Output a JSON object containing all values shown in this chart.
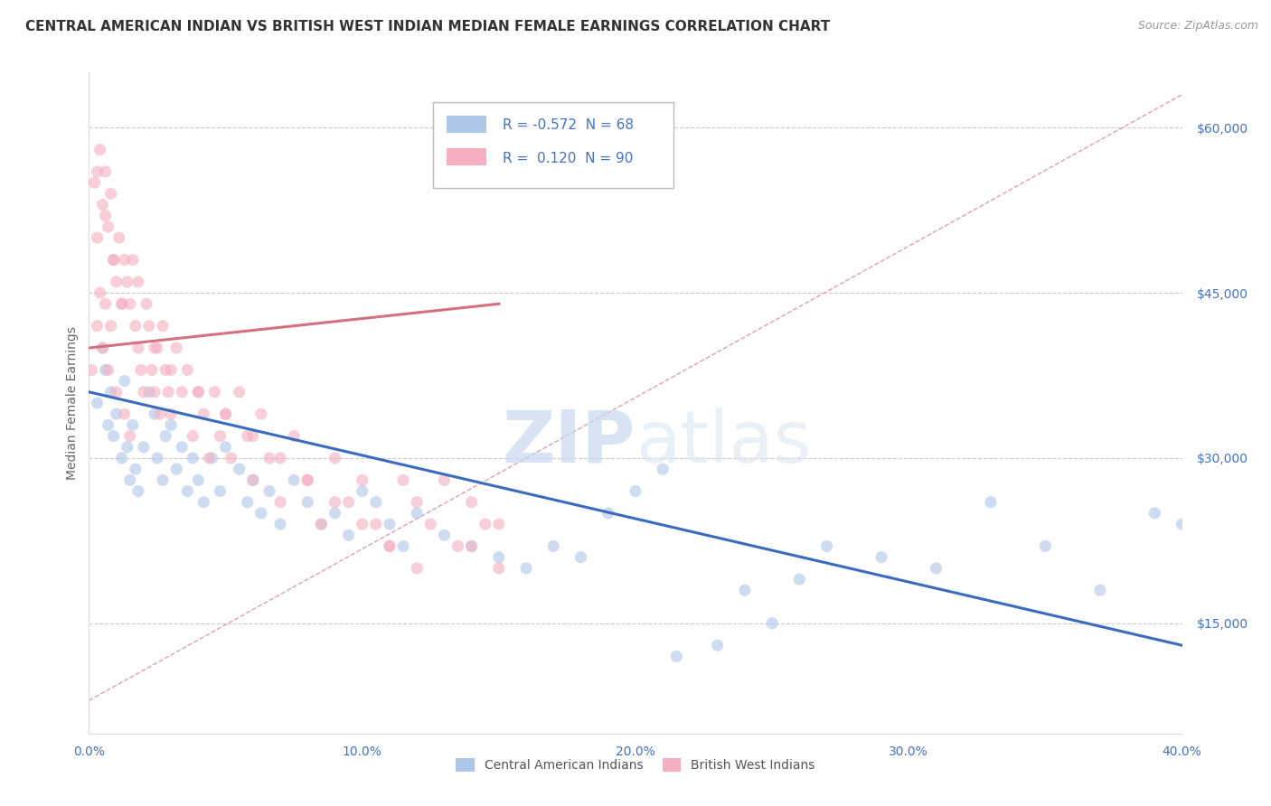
{
  "title": "CENTRAL AMERICAN INDIAN VS BRITISH WEST INDIAN MEDIAN FEMALE EARNINGS CORRELATION CHART",
  "source": "Source: ZipAtlas.com",
  "ylabel": "Median Female Earnings",
  "watermark_zip": "ZIP",
  "watermark_atlas": "atlas",
  "legend_blue_R": "-0.572",
  "legend_blue_N": "68",
  "legend_pink_R": "0.120",
  "legend_pink_N": "90",
  "legend_label_blue": "Central American Indians",
  "legend_label_pink": "British West Indians",
  "xlim": [
    0.0,
    0.4
  ],
  "ylim": [
    5000,
    65000
  ],
  "yticks": [
    15000,
    30000,
    45000,
    60000
  ],
  "ytick_labels": [
    "$15,000",
    "$30,000",
    "$45,000",
    "$60,000"
  ],
  "xticks": [
    0.0,
    0.1,
    0.2,
    0.3,
    0.4
  ],
  "xtick_labels": [
    "0.0%",
    "10.0%",
    "20.0%",
    "30.0%",
    "40.0%"
  ],
  "grid_color": "#cccccc",
  "bg_color": "#ffffff",
  "blue_color": "#aec6e8",
  "pink_color": "#f4afc0",
  "blue_line_color": "#3a6bbf",
  "pink_line_color": "#d47080",
  "dashed_line_color": "#e0a0b0",
  "title_color": "#333333",
  "axis_tick_color": "#4472c4",
  "ylabel_color": "#666666",
  "blue_scatter_x": [
    0.003,
    0.005,
    0.006,
    0.007,
    0.008,
    0.009,
    0.01,
    0.012,
    0.013,
    0.014,
    0.015,
    0.016,
    0.017,
    0.018,
    0.02,
    0.022,
    0.024,
    0.025,
    0.027,
    0.028,
    0.03,
    0.032,
    0.034,
    0.036,
    0.038,
    0.04,
    0.042,
    0.045,
    0.048,
    0.05,
    0.055,
    0.058,
    0.06,
    0.063,
    0.066,
    0.07,
    0.075,
    0.08,
    0.085,
    0.09,
    0.095,
    0.1,
    0.105,
    0.11,
    0.115,
    0.12,
    0.13,
    0.14,
    0.15,
    0.16,
    0.17,
    0.18,
    0.19,
    0.2,
    0.215,
    0.23,
    0.25,
    0.27,
    0.29,
    0.31,
    0.33,
    0.35,
    0.37,
    0.39,
    0.21,
    0.24,
    0.26,
    0.4
  ],
  "blue_scatter_y": [
    35000,
    40000,
    38000,
    33000,
    36000,
    32000,
    34000,
    30000,
    37000,
    31000,
    28000,
    33000,
    29000,
    27000,
    31000,
    36000,
    34000,
    30000,
    28000,
    32000,
    33000,
    29000,
    31000,
    27000,
    30000,
    28000,
    26000,
    30000,
    27000,
    31000,
    29000,
    26000,
    28000,
    25000,
    27000,
    24000,
    28000,
    26000,
    24000,
    25000,
    23000,
    27000,
    26000,
    24000,
    22000,
    25000,
    23000,
    22000,
    21000,
    20000,
    22000,
    21000,
    25000,
    27000,
    12000,
    13000,
    15000,
    22000,
    21000,
    20000,
    26000,
    22000,
    18000,
    25000,
    29000,
    18000,
    19000,
    24000
  ],
  "pink_scatter_x": [
    0.001,
    0.002,
    0.003,
    0.003,
    0.004,
    0.004,
    0.005,
    0.005,
    0.006,
    0.006,
    0.007,
    0.007,
    0.008,
    0.008,
    0.009,
    0.01,
    0.01,
    0.011,
    0.012,
    0.013,
    0.013,
    0.014,
    0.015,
    0.015,
    0.016,
    0.017,
    0.018,
    0.019,
    0.02,
    0.021,
    0.022,
    0.023,
    0.024,
    0.025,
    0.026,
    0.027,
    0.028,
    0.029,
    0.03,
    0.032,
    0.034,
    0.036,
    0.038,
    0.04,
    0.042,
    0.044,
    0.046,
    0.048,
    0.05,
    0.052,
    0.055,
    0.058,
    0.06,
    0.063,
    0.066,
    0.07,
    0.075,
    0.08,
    0.085,
    0.09,
    0.095,
    0.1,
    0.105,
    0.11,
    0.115,
    0.12,
    0.125,
    0.13,
    0.135,
    0.14,
    0.145,
    0.15,
    0.003,
    0.006,
    0.009,
    0.012,
    0.018,
    0.024,
    0.03,
    0.04,
    0.05,
    0.06,
    0.07,
    0.08,
    0.09,
    0.1,
    0.11,
    0.12,
    0.14,
    0.15
  ],
  "pink_scatter_y": [
    38000,
    55000,
    50000,
    42000,
    58000,
    45000,
    53000,
    40000,
    56000,
    44000,
    51000,
    38000,
    54000,
    42000,
    48000,
    46000,
    36000,
    50000,
    44000,
    48000,
    34000,
    46000,
    44000,
    32000,
    48000,
    42000,
    40000,
    38000,
    36000,
    44000,
    42000,
    38000,
    36000,
    40000,
    34000,
    42000,
    38000,
    36000,
    34000,
    40000,
    36000,
    38000,
    32000,
    36000,
    34000,
    30000,
    36000,
    32000,
    34000,
    30000,
    36000,
    32000,
    28000,
    34000,
    30000,
    26000,
    32000,
    28000,
    24000,
    30000,
    26000,
    28000,
    24000,
    22000,
    28000,
    26000,
    24000,
    28000,
    22000,
    26000,
    24000,
    20000,
    56000,
    52000,
    48000,
    44000,
    46000,
    40000,
    38000,
    36000,
    34000,
    32000,
    30000,
    28000,
    26000,
    24000,
    22000,
    20000,
    22000,
    24000
  ],
  "dashed_line_x": [
    0.0,
    0.4
  ],
  "dashed_line_y": [
    8000,
    63000
  ],
  "blue_trend_x": [
    0.0,
    0.4
  ],
  "blue_trend_y": [
    36000,
    13000
  ],
  "pink_trend_x": [
    0.0,
    0.15
  ],
  "pink_trend_y": [
    40000,
    44000
  ],
  "marker_size": 90,
  "marker_alpha": 0.6,
  "title_fontsize": 11,
  "axis_label_fontsize": 10,
  "tick_fontsize": 10,
  "source_fontsize": 9
}
